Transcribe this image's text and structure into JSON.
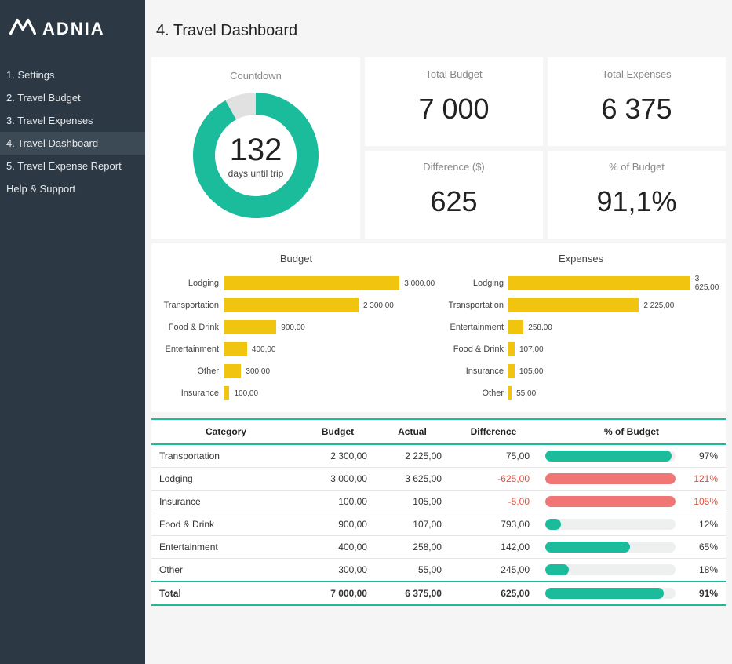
{
  "brand": {
    "name": "ADNIA"
  },
  "sidebar": {
    "items": [
      {
        "label": "1. Settings",
        "active": false
      },
      {
        "label": "2. Travel Budget",
        "active": false
      },
      {
        "label": "3. Travel Expenses",
        "active": false
      },
      {
        "label": "4. Travel Dashboard",
        "active": true
      },
      {
        "label": "5. Travel Expense Report",
        "active": false
      },
      {
        "label": "Help & Support",
        "active": false
      }
    ]
  },
  "page": {
    "title": "4. Travel Dashboard"
  },
  "cards": {
    "countdown": {
      "title": "Countdown",
      "value": "132",
      "sub": "days until trip",
      "pct_complete": 0.92
    },
    "total_budget": {
      "title": "Total Budget",
      "value": "7 000"
    },
    "total_expenses": {
      "title": "Total Expenses",
      "value": "6 375"
    },
    "difference": {
      "title": "Difference ($)",
      "value": "625"
    },
    "pct_budget": {
      "title": "% of Budget",
      "value": "91,1%"
    }
  },
  "colors": {
    "teal": "#1abc9c",
    "donut_bg": "#e1e1e1",
    "yellow": "#f1c40f",
    "red": "#f07575",
    "grey_track": "#eef0f0",
    "sidebar_bg": "#2c3944",
    "sidebar_active": "#3c4a55"
  },
  "budget_chart": {
    "title": "Budget",
    "type": "bar-horizontal",
    "max": 3625,
    "bar_color": "#f1c40f",
    "bars": [
      {
        "label": "Lodging",
        "value": 3000,
        "display": "3 000,00"
      },
      {
        "label": "Transportation",
        "value": 2300,
        "display": "2 300,00"
      },
      {
        "label": "Food & Drink",
        "value": 900,
        "display": "900,00"
      },
      {
        "label": "Entertainment",
        "value": 400,
        "display": "400,00"
      },
      {
        "label": "Other",
        "value": 300,
        "display": "300,00"
      },
      {
        "label": "Insurance",
        "value": 100,
        "display": "100,00"
      }
    ]
  },
  "expenses_chart": {
    "title": "Expenses",
    "type": "bar-horizontal",
    "max": 3625,
    "bar_color": "#f1c40f",
    "bars": [
      {
        "label": "Lodging",
        "value": 3625,
        "display": "3 625,00"
      },
      {
        "label": "Transportation",
        "value": 2225,
        "display": "2 225,00"
      },
      {
        "label": "Entertainment",
        "value": 258,
        "display": "258,00"
      },
      {
        "label": "Food & Drink",
        "value": 107,
        "display": "107,00"
      },
      {
        "label": "Insurance",
        "value": 105,
        "display": "105,00"
      },
      {
        "label": "Other",
        "value": 55,
        "display": "55,00"
      }
    ]
  },
  "table": {
    "columns": [
      "Category",
      "Budget",
      "Actual",
      "Difference",
      "% of Budget"
    ],
    "rows": [
      {
        "category": "Transportation",
        "budget": "2 300,00",
        "actual": "2 225,00",
        "diff": "75,00",
        "diff_neg": false,
        "pct": 97,
        "pct_text": "97%",
        "over": false
      },
      {
        "category": "Lodging",
        "budget": "3 000,00",
        "actual": "3 625,00",
        "diff": "-625,00",
        "diff_neg": true,
        "pct": 121,
        "pct_text": "121%",
        "over": true
      },
      {
        "category": "Insurance",
        "budget": "100,00",
        "actual": "105,00",
        "diff": "-5,00",
        "diff_neg": true,
        "pct": 105,
        "pct_text": "105%",
        "over": true
      },
      {
        "category": "Food & Drink",
        "budget": "900,00",
        "actual": "107,00",
        "diff": "793,00",
        "diff_neg": false,
        "pct": 12,
        "pct_text": "12%",
        "over": false
      },
      {
        "category": "Entertainment",
        "budget": "400,00",
        "actual": "258,00",
        "diff": "142,00",
        "diff_neg": false,
        "pct": 65,
        "pct_text": "65%",
        "over": false
      },
      {
        "category": "Other",
        "budget": "300,00",
        "actual": "55,00",
        "diff": "245,00",
        "diff_neg": false,
        "pct": 18,
        "pct_text": "18%",
        "over": false
      }
    ],
    "total": {
      "category": "Total",
      "budget": "7 000,00",
      "actual": "6 375,00",
      "diff": "625,00",
      "diff_neg": false,
      "pct": 91,
      "pct_text": "91%",
      "over": false
    }
  }
}
